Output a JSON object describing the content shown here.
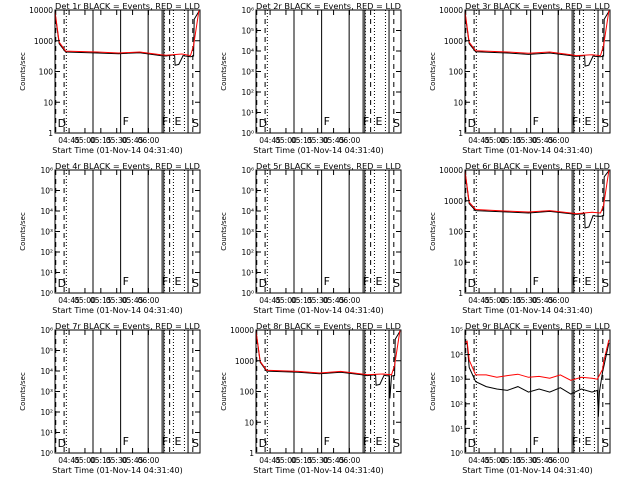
{
  "page": {
    "title": "RHESSI detector event rates, 9 detectors"
  },
  "colors": {
    "events": "#000000",
    "lld": "#ff0000",
    "axes": "#000000"
  },
  "chart_data": [
    {
      "type": "line",
      "title": "Det 1r BLACK = Events, RED = LLD",
      "ylabel": "Counts/sec",
      "xlabel": "Start Time (01-Nov-14 04:31:40)",
      "yscale": "log",
      "ylim": [
        1,
        10000
      ],
      "ytick_labels": [
        "1",
        "10",
        "100",
        "1000",
        "10000"
      ],
      "x_tick_labels": [
        "04:45",
        "05:00",
        "05:15",
        "05:30",
        "05:45",
        "06:00"
      ],
      "markers": [
        "D",
        "F",
        "F",
        "E",
        "S"
      ],
      "series": [
        {
          "name": "Events",
          "x_min": [
            0,
            4,
            10,
            40,
            60,
            80,
            100,
            105,
            113,
            113.5,
            117,
            121,
            123,
            128,
            131,
            131.5,
            136
          ],
          "values": [
            8000,
            800,
            430,
            400,
            380,
            410,
            330,
            320,
            350,
            160,
            170,
            330,
            320,
            300,
            320,
            5000,
            9000
          ]
        },
        {
          "name": "LLD",
          "x_min": [
            0,
            4,
            10,
            40,
            60,
            80,
            100,
            105,
            120,
            128,
            131,
            136
          ],
          "values": [
            9000,
            900,
            460,
            430,
            400,
            430,
            350,
            340,
            370,
            330,
            700,
            9500
          ]
        }
      ]
    },
    {
      "type": "line",
      "title": "Det 2r BLACK = Events, RED = LLD",
      "ylabel": "Counts/sec",
      "xlabel": "Start Time (01-Nov-14 04:31:40)",
      "yscale": "log",
      "ylim": [
        1,
        1000000
      ],
      "ytick_labels": [
        "10⁰",
        "10¹",
        "10²",
        "10³",
        "10⁴",
        "10⁵",
        "10⁶"
      ],
      "x_tick_labels": [
        "04:45",
        "05:00",
        "05:15",
        "05:30",
        "05:45",
        "06:00"
      ],
      "markers": [
        "D",
        "F",
        "F",
        "E",
        "S"
      ],
      "series": []
    },
    {
      "type": "line",
      "title": "Det 3r BLACK = Events, RED = LLD",
      "ylabel": "Counts/sec",
      "xlabel": "Start Time (01-Nov-14 04:31:40)",
      "yscale": "log",
      "ylim": [
        1,
        10000
      ],
      "ytick_labels": [
        "1",
        "10",
        "100",
        "1000",
        "10000"
      ],
      "x_tick_labels": [
        "04:45",
        "05:00",
        "05:15",
        "05:30",
        "05:45",
        "06:00"
      ],
      "markers": [
        "D",
        "F",
        "F",
        "E",
        "S"
      ],
      "series": [
        {
          "name": "Events",
          "x_min": [
            0,
            4,
            10,
            40,
            60,
            80,
            100,
            105,
            113,
            113.5,
            117,
            121,
            123,
            128,
            131,
            131.5,
            136
          ],
          "values": [
            8000,
            800,
            440,
            400,
            360,
            400,
            330,
            310,
            330,
            150,
            160,
            320,
            310,
            300,
            320,
            5000,
            9000
          ]
        },
        {
          "name": "LLD",
          "x_min": [
            0,
            4,
            10,
            40,
            60,
            80,
            100,
            105,
            120,
            128,
            131,
            136
          ],
          "values": [
            9000,
            900,
            470,
            430,
            390,
            430,
            350,
            330,
            350,
            330,
            700,
            9500
          ]
        }
      ]
    },
    {
      "type": "line",
      "title": "Det 4r BLACK = Events, RED = LLD",
      "ylabel": "Counts/sec",
      "xlabel": "Start Time (01-Nov-14 04:31:40)",
      "yscale": "log",
      "ylim": [
        1,
        1000000
      ],
      "ytick_labels": [
        "10⁰",
        "10¹",
        "10²",
        "10³",
        "10⁴",
        "10⁵",
        "10⁶"
      ],
      "x_tick_labels": [
        "04:45",
        "05:00",
        "05:15",
        "05:30",
        "05:45",
        "06:00"
      ],
      "markers": [
        "D",
        "F",
        "F",
        "E",
        "S"
      ],
      "series": []
    },
    {
      "type": "line",
      "title": "Det 5r BLACK = Events, RED = LLD",
      "ylabel": "Counts/sec",
      "xlabel": "Start Time (01-Nov-14 04:31:40)",
      "yscale": "log",
      "ylim": [
        1,
        1000000
      ],
      "ytick_labels": [
        "10⁰",
        "10¹",
        "10²",
        "10³",
        "10⁴",
        "10⁵",
        "10⁶"
      ],
      "x_tick_labels": [
        "04:45",
        "05:00",
        "05:15",
        "05:30",
        "05:45",
        "06:00"
      ],
      "markers": [
        "D",
        "F",
        "F",
        "E",
        "S"
      ],
      "series": []
    },
    {
      "type": "line",
      "title": "Det 6r BLACK = Events, RED = LLD",
      "ylabel": "Counts/sec",
      "xlabel": "Start Time (01-Nov-14 04:31:40)",
      "yscale": "log",
      "ylim": [
        1,
        10000
      ],
      "ytick_labels": [
        "1",
        "10",
        "100",
        "1000",
        "10000"
      ],
      "x_tick_labels": [
        "04:45",
        "05:00",
        "05:15",
        "05:30",
        "05:45",
        "06:00"
      ],
      "markers": [
        "D",
        "F",
        "F",
        "E",
        "S"
      ],
      "series": [
        {
          "name": "Events",
          "x_min": [
            0,
            4,
            10,
            40,
            60,
            80,
            100,
            105,
            113,
            113.5,
            117,
            121,
            123,
            128,
            131,
            131.5,
            136
          ],
          "values": [
            9000,
            800,
            480,
            430,
            400,
            450,
            380,
            360,
            380,
            130,
            140,
            330,
            320,
            310,
            330,
            6000,
            9500
          ]
        },
        {
          "name": "LLD",
          "x_min": [
            0,
            4,
            10,
            40,
            60,
            80,
            100,
            105,
            120,
            128,
            131,
            136
          ],
          "values": [
            9500,
            900,
            520,
            460,
            430,
            480,
            400,
            380,
            420,
            400,
            700,
            9800
          ]
        }
      ]
    },
    {
      "type": "line",
      "title": "Det 7r BLACK = Events, RED = LLD",
      "ylabel": "Counts/sec",
      "xlabel": "Start Time (01-Nov-14 04:31:40)",
      "yscale": "log",
      "ylim": [
        1,
        1000000
      ],
      "ytick_labels": [
        "10⁰",
        "10¹",
        "10²",
        "10³",
        "10⁴",
        "10⁵",
        "10⁶"
      ],
      "x_tick_labels": [
        "04:45",
        "05:00",
        "05:15",
        "05:30",
        "05:45",
        "06:00"
      ],
      "markers": [
        "D",
        "F",
        "F",
        "E",
        "S"
      ],
      "series": []
    },
    {
      "type": "line",
      "title": "Det 8r BLACK = Events, RED = LLD",
      "ylabel": "Counts/sec",
      "xlabel": "Start Time (01-Nov-14 04:31:40)",
      "yscale": "log",
      "ylim": [
        1,
        10000
      ],
      "ytick_labels": [
        "1",
        "10",
        "100",
        "1000",
        "10000"
      ],
      "x_tick_labels": [
        "04:45",
        "05:00",
        "05:15",
        "05:30",
        "05:45",
        "06:00"
      ],
      "markers": [
        "D",
        "F",
        "F",
        "E",
        "S"
      ],
      "series": [
        {
          "name": "Events",
          "x_min": [
            0,
            4,
            10,
            40,
            60,
            80,
            100,
            105,
            113,
            113.5,
            117,
            121,
            123,
            126,
            126.5,
            128,
            131,
            131.5,
            136
          ],
          "values": [
            9000,
            900,
            460,
            420,
            380,
            420,
            350,
            330,
            350,
            160,
            170,
            340,
            330,
            320,
            60,
            320,
            330,
            5000,
            9000
          ]
        },
        {
          "name": "LLD",
          "x_min": [
            0,
            4,
            10,
            40,
            60,
            80,
            100,
            105,
            120,
            128,
            131,
            136
          ],
          "values": [
            9500,
            950,
            490,
            450,
            400,
            450,
            370,
            350,
            370,
            350,
            700,
            9500
          ]
        }
      ]
    },
    {
      "type": "line",
      "title": "Det 9r BLACK = Events, RED = LLD",
      "ylabel": "Counts/sec",
      "xlabel": "Start Time (01-Nov-14 04:31:40)",
      "yscale": "log",
      "ylim": [
        1,
        100000
      ],
      "ytick_labels": [
        "10⁰",
        "10¹",
        "10²",
        "10³",
        "10⁴",
        "10⁵"
      ],
      "x_tick_labels": [
        "04:45",
        "05:00",
        "05:15",
        "05:30",
        "05:45",
        "06:00"
      ],
      "markers": [
        "D",
        "F",
        "F",
        "E",
        "S"
      ],
      "series": [
        {
          "name": "Events",
          "x_min": [
            0,
            2,
            4,
            10,
            20,
            30,
            40,
            50,
            60,
            70,
            80,
            90,
            100,
            110,
            120,
            125,
            126,
            127,
            130,
            131,
            136
          ],
          "values": [
            25000,
            30000,
            3000,
            800,
            500,
            400,
            350,
            500,
            300,
            400,
            300,
            450,
            250,
            400,
            300,
            350,
            30,
            300,
            2000,
            3000,
            30000
          ]
        },
        {
          "name": "LLD",
          "x_min": [
            0,
            2,
            4,
            10,
            20,
            30,
            40,
            50,
            60,
            70,
            80,
            90,
            100,
            110,
            120,
            125,
            130,
            131,
            136
          ],
          "values": [
            30000,
            35000,
            6000,
            1500,
            1500,
            1200,
            1400,
            1600,
            1200,
            1300,
            1100,
            1500,
            900,
            1200,
            1100,
            1000,
            2500,
            5000,
            40000
          ]
        }
      ]
    }
  ]
}
